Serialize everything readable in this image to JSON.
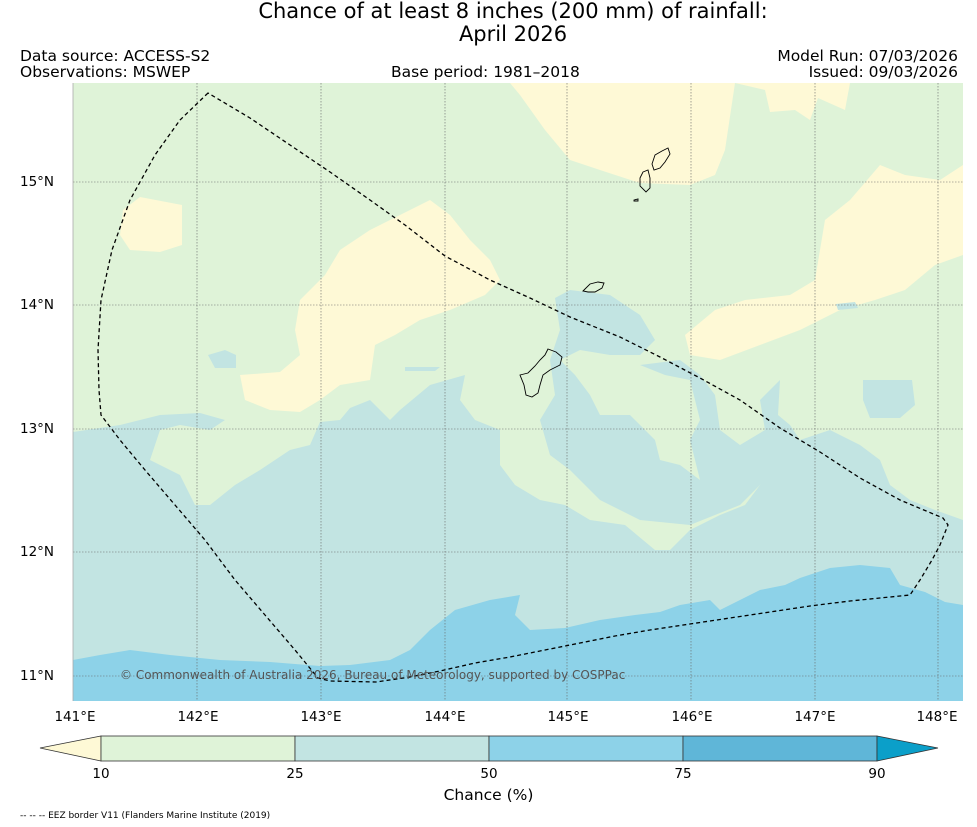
{
  "title": {
    "line1": "Chance of at least 8 inches (200  mm) of rainfall:",
    "line2": "April 2026"
  },
  "info": {
    "data_source": "Data source: ACCESS-S2",
    "observations": "Observations: MSWEP",
    "base_period": "Base period: 1981–2018",
    "model_run": "Model Run: 07/03/2026",
    "issued": "Issued: 09/03/2026"
  },
  "map": {
    "x_ticks": [
      "141°E",
      "142°E",
      "143°E",
      "144°E",
      "145°E",
      "146°E",
      "147°E",
      "148°E"
    ],
    "y_ticks": [
      "15°N",
      "14°N",
      "13°N",
      "12°N",
      "11°N"
    ],
    "copyright": "© Commonwealth of Australia 2026, Bureau of Meteorology, supported by COSPPac",
    "grid": true
  },
  "colorbar": {
    "label": "Chance (%)",
    "ticks": [
      "10",
      "25",
      "50",
      "75",
      "90"
    ],
    "colors": [
      "#fef9d6",
      "#dff3d8",
      "#c2e4e2",
      "#8dd2e8",
      "#5fb6d8",
      "#0b9fc9"
    ]
  },
  "footnote": "-- -- -- EEZ border V11 (Flanders Marine Institute (2019)"
}
